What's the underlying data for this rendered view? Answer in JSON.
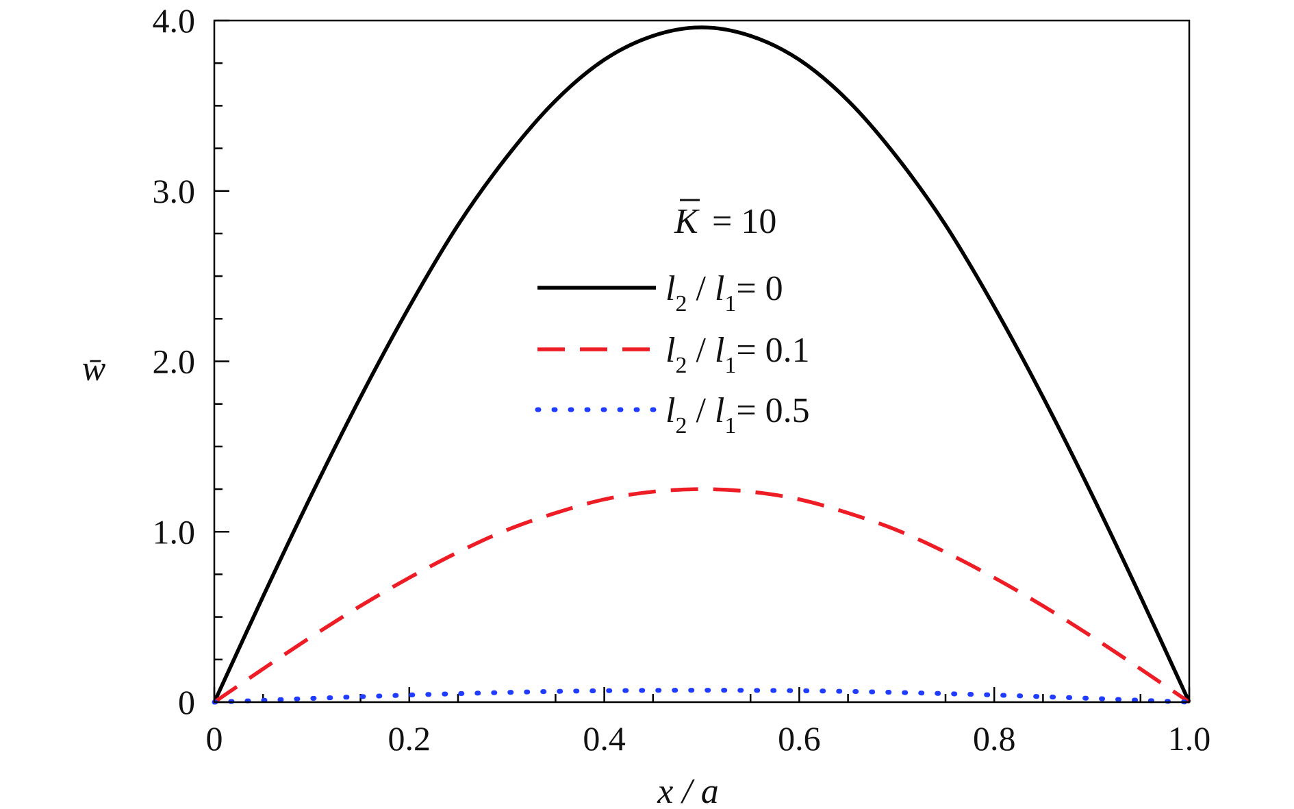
{
  "chart_data": {
    "type": "line",
    "title": "",
    "xlabel": "x / a",
    "ylabel": "w̄",
    "xlim": [
      0,
      1.0
    ],
    "ylim": [
      0,
      4.0
    ],
    "x_ticks": [
      0,
      0.2,
      0.4,
      0.6,
      0.8,
      1.0
    ],
    "x_tick_labels": [
      "0",
      "0.2",
      "0.4",
      "0.6",
      "0.8",
      "1.0"
    ],
    "y_ticks": [
      0,
      1.0,
      2.0,
      3.0,
      4.0
    ],
    "y_tick_labels": [
      "0",
      "1.0",
      "2.0",
      "3.0",
      "4.0"
    ],
    "grid": false,
    "legend_position": "center",
    "annotation": {
      "symbol": "K",
      "equals": "= 10"
    },
    "x": [
      0,
      0.05,
      0.1,
      0.15,
      0.2,
      0.25,
      0.3,
      0.35,
      0.4,
      0.45,
      0.5,
      0.55,
      0.6,
      0.65,
      0.7,
      0.75,
      0.8,
      0.85,
      0.9,
      0.95,
      1.0
    ],
    "series": [
      {
        "name": "l2 / l1 = 0",
        "label_parts": [
          "l",
          "2",
          " / ",
          "l",
          "1",
          "= 0"
        ],
        "color": "#000000",
        "style": "solid",
        "values": [
          0,
          0.62,
          1.22,
          1.79,
          2.32,
          2.8,
          3.2,
          3.53,
          3.77,
          3.91,
          3.96,
          3.91,
          3.77,
          3.53,
          3.2,
          2.8,
          2.32,
          1.79,
          1.22,
          0.62,
          0
        ]
      },
      {
        "name": "l2 / l1 = 0.1",
        "label_parts": [
          "l",
          "2",
          " / ",
          "l",
          "1",
          "= 0.1"
        ],
        "color": "#ee1c25",
        "style": "dashed",
        "values": [
          0,
          0.195,
          0.385,
          0.565,
          0.73,
          0.88,
          1.01,
          1.11,
          1.19,
          1.235,
          1.25,
          1.235,
          1.19,
          1.11,
          1.01,
          0.88,
          0.73,
          0.565,
          0.385,
          0.195,
          0
        ]
      },
      {
        "name": "l2 / l1 = 0.5",
        "label_parts": [
          "l",
          "2",
          " / ",
          "l",
          "1",
          "= 0.5"
        ],
        "color": "#1f3cff",
        "style": "dotted",
        "values": [
          0,
          0.011,
          0.022,
          0.032,
          0.042,
          0.05,
          0.057,
          0.063,
          0.067,
          0.069,
          0.07,
          0.069,
          0.067,
          0.063,
          0.057,
          0.05,
          0.042,
          0.032,
          0.022,
          0.011,
          0
        ]
      }
    ]
  }
}
